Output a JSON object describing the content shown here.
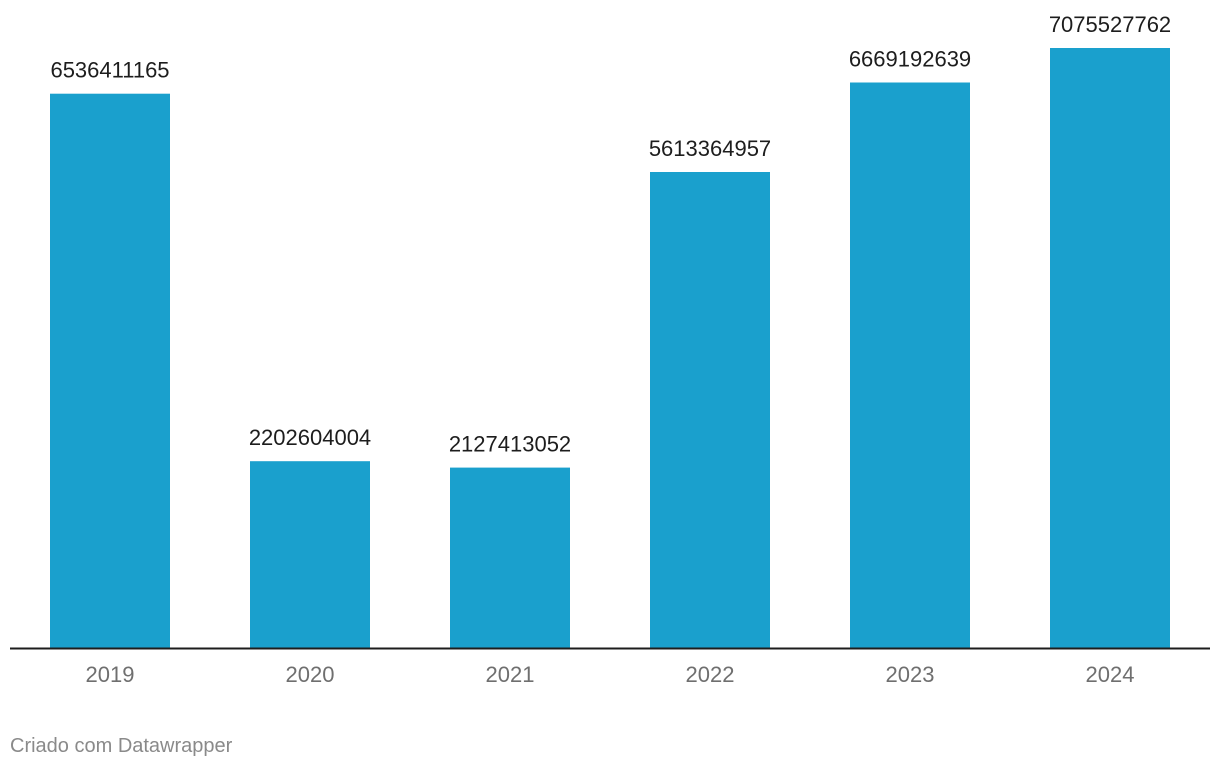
{
  "chart_data": {
    "type": "bar",
    "categories": [
      "2019",
      "2020",
      "2021",
      "2022",
      "2023",
      "2024"
    ],
    "values": [
      6536411165,
      2202604004,
      2127413052,
      5613364957,
      6669192639,
      7075527762
    ],
    "value_labels": [
      "6536411165",
      "2202604004",
      "2127413052",
      "5613364957",
      "6669192639",
      "7075527762"
    ],
    "title": "",
    "xlabel": "",
    "ylabel": "",
    "ylim": [
      0,
      7500000000
    ],
    "grid": false,
    "legend": "none",
    "bar_color": "#1aa0cd",
    "axis_color": "#1d1d1d",
    "value_label_color": "#1d1d1d",
    "tick_label_color": "#6f6f6f"
  },
  "footer": {
    "attribution": "Criado com Datawrapper"
  }
}
